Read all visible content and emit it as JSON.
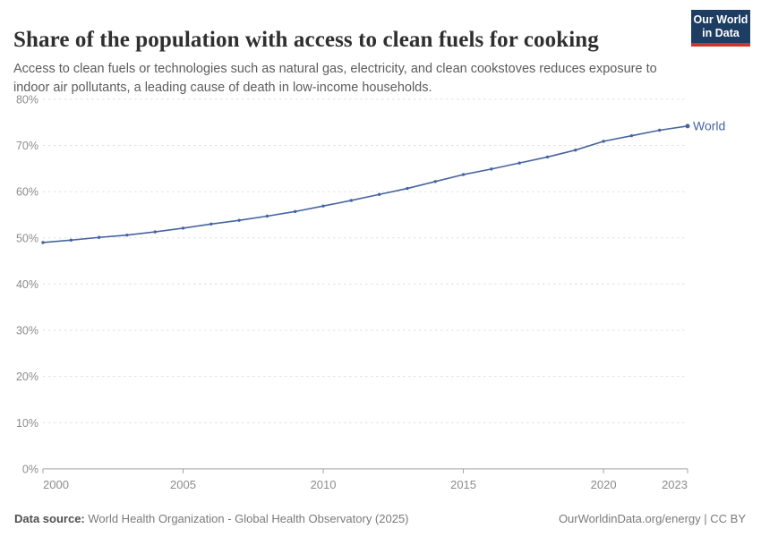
{
  "header": {
    "title": "Share of the population with access to clean fuels for cooking",
    "subtitle": "Access to clean fuels or technologies such as natural gas, electricity, and clean cookstoves reduces exposure to indoor air pollutants, a leading cause of death in low-income households.",
    "logo": {
      "line1": "Our World",
      "line2": "in Data",
      "bg_color": "#1d3d63",
      "accent_color": "#d0342c"
    }
  },
  "chart_data": {
    "type": "line",
    "title": "Share of the population with access to clean fuels for cooking",
    "xlabel": "",
    "ylabel": "",
    "xlim": [
      2000,
      2023
    ],
    "ylim": [
      0,
      80
    ],
    "grid": "horizontal-dashed",
    "legend_position": "end-of-line-label",
    "x": [
      2000,
      2001,
      2002,
      2003,
      2004,
      2005,
      2006,
      2007,
      2008,
      2009,
      2010,
      2011,
      2012,
      2013,
      2014,
      2015,
      2016,
      2017,
      2018,
      2019,
      2020,
      2021,
      2022,
      2023
    ],
    "series": [
      {
        "name": "World",
        "color": "#4664a0",
        "unit": "%",
        "values": [
          49.0,
          49.5,
          50.1,
          50.6,
          51.3,
          52.1,
          53.0,
          53.8,
          54.7,
          55.7,
          56.9,
          58.1,
          59.4,
          60.7,
          62.2,
          63.7,
          64.9,
          66.2,
          67.5,
          69.0,
          70.9,
          72.1,
          73.3,
          74.2
        ]
      }
    ],
    "y_tick_labels": [
      "0%",
      "10%",
      "20%",
      "30%",
      "40%",
      "50%",
      "60%",
      "70%",
      "80%"
    ],
    "y_tick_values": [
      0,
      10,
      20,
      30,
      40,
      50,
      60,
      70,
      80
    ],
    "x_tick_labels": [
      "2000",
      "2005",
      "2010",
      "2015",
      "2020",
      "2023"
    ],
    "x_tick_values": [
      2000,
      2005,
      2010,
      2015,
      2020,
      2023
    ],
    "colors": {
      "gridline": "#e0e0e0",
      "axis": "#a3a3a3",
      "tick_text": "#8c8c8c"
    }
  },
  "footer": {
    "datasource_label": "Data source:",
    "datasource_value": " World Health Organization - Global Health Observatory (2025)",
    "credit": "OurWorldinData.org/energy | CC BY"
  }
}
